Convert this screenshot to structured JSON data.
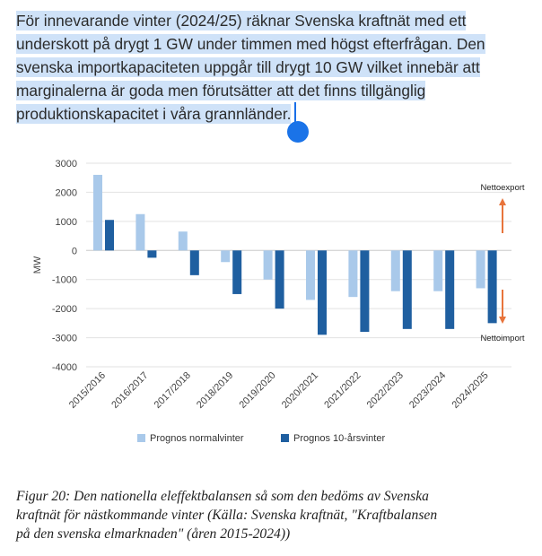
{
  "paragraph": {
    "lines": [
      "För innevarande vinter (2024/25) räknar Svenska kraftnät med ett",
      "underskott på drygt 1 GW under timmen med högst efterfrågan. Den",
      "svenska importkapaciteten uppgår till drygt 10 GW vilket innebär att",
      "marginalerna är goda men förutsätter att det finns tillgänglig",
      "produktionskapacitet i våra grannländer."
    ]
  },
  "chart_data": {
    "type": "bar",
    "title": "",
    "xlabel": "",
    "ylabel": "MW",
    "ylim": [
      -4000,
      3000
    ],
    "yticks": [
      3000,
      2000,
      1000,
      0,
      -1000,
      -2000,
      -3000,
      -4000
    ],
    "grid": true,
    "legend_position": "bottom",
    "categories": [
      "2015/2016",
      "2016/2017",
      "2017/2018",
      "2018/2019",
      "2019/2020",
      "2020/2021",
      "2021/2022",
      "2022/2023",
      "2023/2024",
      "2024/2025"
    ],
    "series": [
      {
        "name": "Prognos normalvinter",
        "color": "#a9c9ea",
        "values": [
          2600,
          1250,
          650,
          -400,
          -1000,
          -1700,
          -1600,
          -1400,
          -1400,
          -1300
        ]
      },
      {
        "name": "Prognos 10-årsvinter",
        "color": "#1f5fa0",
        "values": [
          1050,
          -250,
          -850,
          -1500,
          -2000,
          -2900,
          -2800,
          -2700,
          -2700,
          -2500
        ]
      }
    ],
    "annotations": [
      {
        "text": "Nettoexport",
        "arrow": "up",
        "color": "#e8743b"
      },
      {
        "text": "Nettoimport",
        "arrow": "down",
        "color": "#e8743b"
      }
    ]
  },
  "caption": {
    "lines": [
      "Figur 20: Den nationella eleffektbalansen så som den bedöms av Svenska",
      "kraftnät för nästkommande vinter (Källa: Svenska kraftnät, \"Kraftbalansen",
      "på den svenska elmarknaden\" (åren 2015-2024))"
    ]
  }
}
